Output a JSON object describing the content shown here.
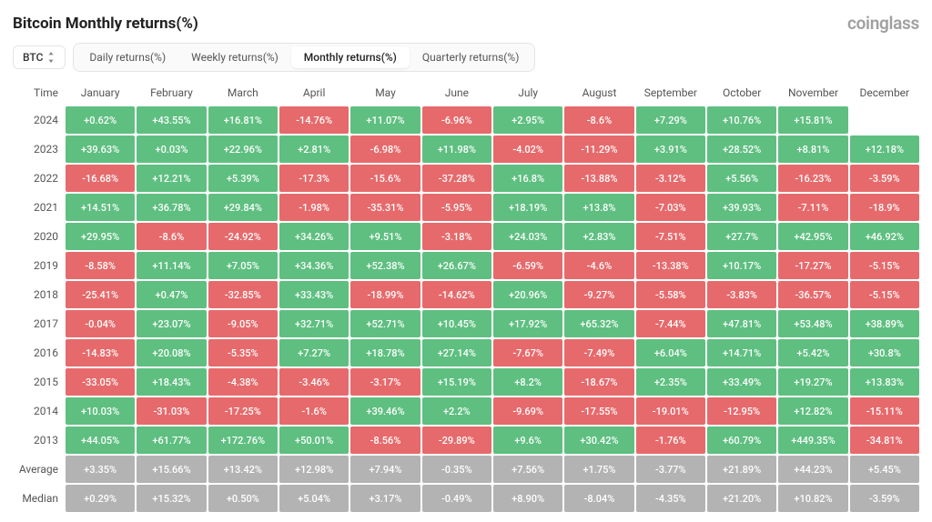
{
  "title": "Bitcoin Monthly returns(%)",
  "brand": "coinglass",
  "coin_selector": "BTC",
  "tabs": [
    "Daily returns(%)",
    "Weekly returns(%)",
    "Monthly returns(%)",
    "Quarterly returns(%)"
  ],
  "active_tab_index": 2,
  "time_col_header": "Time",
  "months": [
    "January",
    "February",
    "March",
    "April",
    "May",
    "June",
    "July",
    "August",
    "September",
    "October",
    "November",
    "December"
  ],
  "colors": {
    "positive": "#5ebf80",
    "negative": "#e66a6c",
    "summary": "#b3b3b3",
    "background": "#ffffff"
  },
  "cell_font_size": 11,
  "header_font_size": 12,
  "rows": [
    {
      "label": "2024",
      "type": "data",
      "values": [
        0.62,
        43.55,
        16.81,
        -14.76,
        11.07,
        -6.96,
        2.95,
        -8.6,
        7.29,
        10.76,
        15.81,
        null
      ]
    },
    {
      "label": "2023",
      "type": "data",
      "values": [
        39.63,
        0.03,
        22.96,
        2.81,
        -6.98,
        11.98,
        -4.02,
        -11.29,
        3.91,
        28.52,
        8.81,
        12.18
      ]
    },
    {
      "label": "2022",
      "type": "data",
      "values": [
        -16.68,
        12.21,
        5.39,
        -17.3,
        -15.6,
        -37.28,
        16.8,
        -13.88,
        -3.12,
        5.56,
        -16.23,
        -3.59
      ]
    },
    {
      "label": "2021",
      "type": "data",
      "values": [
        14.51,
        36.78,
        29.84,
        -1.98,
        -35.31,
        -5.95,
        18.19,
        13.8,
        -7.03,
        39.93,
        -7.11,
        -18.9
      ]
    },
    {
      "label": "2020",
      "type": "data",
      "values": [
        29.95,
        -8.6,
        -24.92,
        34.26,
        9.51,
        -3.18,
        24.03,
        2.83,
        -7.51,
        27.7,
        42.95,
        46.92
      ]
    },
    {
      "label": "2019",
      "type": "data",
      "values": [
        -8.58,
        11.14,
        7.05,
        34.36,
        52.38,
        26.67,
        -6.59,
        -4.6,
        -13.38,
        10.17,
        -17.27,
        -5.15
      ]
    },
    {
      "label": "2018",
      "type": "data",
      "values": [
        -25.41,
        0.47,
        -32.85,
        33.43,
        -18.99,
        -14.62,
        20.96,
        -9.27,
        -5.58,
        -3.83,
        -36.57,
        -5.15
      ]
    },
    {
      "label": "2017",
      "type": "data",
      "values": [
        -0.04,
        23.07,
        -9.05,
        32.71,
        52.71,
        10.45,
        17.92,
        65.32,
        -7.44,
        47.81,
        53.48,
        38.89
      ]
    },
    {
      "label": "2016",
      "type": "data",
      "values": [
        -14.83,
        20.08,
        -5.35,
        7.27,
        18.78,
        27.14,
        -7.67,
        -7.49,
        6.04,
        14.71,
        5.42,
        30.8
      ]
    },
    {
      "label": "2015",
      "type": "data",
      "values": [
        -33.05,
        18.43,
        -4.38,
        -3.46,
        -3.17,
        15.19,
        8.2,
        -18.67,
        2.35,
        33.49,
        19.27,
        13.83
      ]
    },
    {
      "label": "2014",
      "type": "data",
      "values": [
        10.03,
        -31.03,
        -17.25,
        -1.6,
        39.46,
        2.2,
        -9.69,
        -17.55,
        -19.01,
        -12.95,
        12.82,
        -15.11
      ]
    },
    {
      "label": "2013",
      "type": "data",
      "values": [
        44.05,
        61.77,
        172.76,
        50.01,
        -8.56,
        -29.89,
        9.6,
        30.42,
        -1.76,
        60.79,
        449.35,
        -34.81
      ]
    },
    {
      "label": "Average",
      "type": "summary",
      "values": [
        3.35,
        15.66,
        13.42,
        12.98,
        7.94,
        -0.35,
        7.56,
        1.75,
        -3.77,
        21.89,
        44.23,
        5.45
      ]
    },
    {
      "label": "Median",
      "type": "summary",
      "values": [
        0.29,
        15.32,
        0.5,
        5.04,
        3.17,
        -0.49,
        8.9,
        -8.04,
        -4.35,
        21.2,
        10.82,
        -3.59
      ]
    }
  ]
}
